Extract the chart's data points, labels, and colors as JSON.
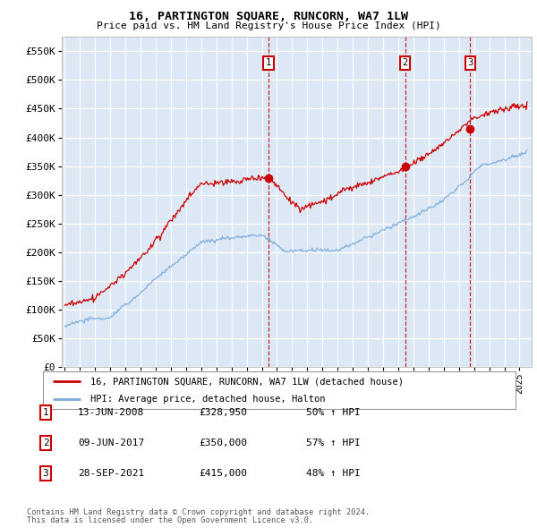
{
  "title": "16, PARTINGTON SQUARE, RUNCORN, WA7 1LW",
  "subtitle": "Price paid vs. HM Land Registry's House Price Index (HPI)",
  "background_color": "#dce8f5",
  "ylim": [
    0,
    575000
  ],
  "yticks": [
    0,
    50000,
    100000,
    150000,
    200000,
    250000,
    300000,
    350000,
    400000,
    450000,
    500000,
    550000
  ],
  "x_start_year": 1995,
  "x_end_year": 2025,
  "legend_line1": "16, PARTINGTON SQUARE, RUNCORN, WA7 1LW (detached house)",
  "legend_line2": "HPI: Average price, detached house, Halton",
  "transactions": [
    {
      "num": 1,
      "date": "13-JUN-2008",
      "price": 328950,
      "pct": "50%",
      "dir": "↑",
      "year": 2008.45
    },
    {
      "num": 2,
      "date": "09-JUN-2017",
      "price": 350000,
      "pct": "57%",
      "dir": "↑",
      "year": 2017.45
    },
    {
      "num": 3,
      "date": "28-SEP-2021",
      "price": 415000,
      "pct": "48%",
      "dir": "↑",
      "year": 2021.75
    }
  ],
  "footer_line1": "Contains HM Land Registry data © Crown copyright and database right 2024.",
  "footer_line2": "This data is licensed under the Open Government Licence v3.0.",
  "hpi_color": "#7aabdb",
  "price_color": "#cc0000",
  "vline_color": "#cc0000",
  "dot_color": "#cc0000"
}
